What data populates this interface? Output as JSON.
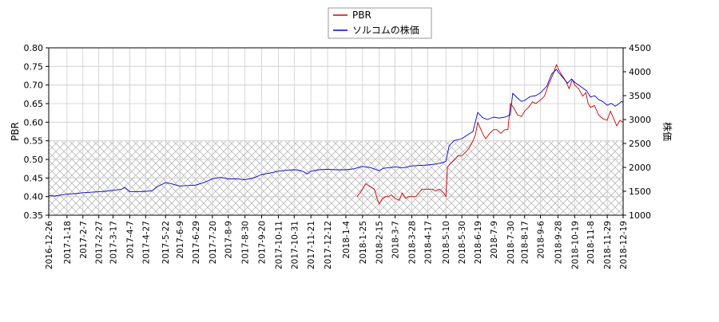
{
  "chart_data": {
    "type": "line",
    "title": "",
    "legend": {
      "placement": "top-center",
      "entries": [
        {
          "name": "PBR",
          "color": "#cc0000"
        },
        {
          "name": "ソルコムの株価",
          "color": "#0000cc"
        }
      ]
    },
    "x_axis": {
      "type": "date",
      "range": [
        "2016-12-26",
        "2018-12-19"
      ],
      "tick_labels": [
        "2016-12-26",
        "2017-1-18",
        "2017-2-7",
        "2017-2-27",
        "2017-3-17",
        "2017-4-7",
        "2017-4-27",
        "2017-5-22",
        "2017-6-9",
        "2017-6-29",
        "2017-7-20",
        "2017-8-9",
        "2017-8-30",
        "2017-9-20",
        "2017-10-11",
        "2017-10-31",
        "2017-11-21",
        "2017-12-12",
        "2018-1-4",
        "2018-1-25",
        "2018-2-15",
        "2018-3-7",
        "2018-3-28",
        "2018-4-17",
        "2018-5-10",
        "2018-5-30",
        "2018-6-19",
        "2018-7-9",
        "2018-7-30",
        "2018-8-17",
        "2018-9-6",
        "2018-9-28",
        "2018-10-19",
        "2018-11-8",
        "2018-11-29",
        "2018-12-19"
      ]
    },
    "y_left": {
      "label": "PBR",
      "range": [
        0.35,
        0.8
      ],
      "ticks": [
        "0.35",
        "0.40",
        "0.45",
        "0.50",
        "0.55",
        "0.60",
        "0.65",
        "0.70",
        "0.75",
        "0.80"
      ],
      "hatched_below": 0.55
    },
    "y_right": {
      "label": "株価",
      "range": [
        1000,
        4500
      ],
      "ticks": [
        "1000",
        "1500",
        "2000",
        "2500",
        "3000",
        "3500",
        "4000",
        "4500"
      ]
    },
    "grid": true,
    "series": [
      {
        "name": "PBR",
        "color": "#cc0000",
        "axis": "left",
        "points": [
          [
            "2018-1-18",
            0.4
          ],
          [
            "2018-1-22",
            0.41
          ],
          [
            "2018-1-25",
            0.42
          ],
          [
            "2018-1-29",
            0.435
          ],
          [
            "2018-2-1",
            0.43
          ],
          [
            "2018-2-5",
            0.425
          ],
          [
            "2018-2-9",
            0.42
          ],
          [
            "2018-2-13",
            0.39
          ],
          [
            "2018-2-15",
            0.38
          ],
          [
            "2018-2-19",
            0.395
          ],
          [
            "2018-2-23",
            0.4
          ],
          [
            "2018-2-27",
            0.4
          ],
          [
            "2018-3-2",
            0.405
          ],
          [
            "2018-3-7",
            0.395
          ],
          [
            "2018-3-12",
            0.39
          ],
          [
            "2018-3-16",
            0.41
          ],
          [
            "2018-3-20",
            0.395
          ],
          [
            "2018-3-24",
            0.4
          ],
          [
            "2018-3-28",
            0.4
          ],
          [
            "2018-4-2",
            0.4
          ],
          [
            "2018-4-6",
            0.41
          ],
          [
            "2018-4-10",
            0.42
          ],
          [
            "2018-4-17",
            0.42
          ],
          [
            "2018-4-23",
            0.42
          ],
          [
            "2018-4-27",
            0.415
          ],
          [
            "2018-5-2",
            0.42
          ],
          [
            "2018-5-7",
            0.41
          ],
          [
            "2018-5-10",
            0.4
          ],
          [
            "2018-5-12",
            0.48
          ],
          [
            "2018-5-16",
            0.49
          ],
          [
            "2018-5-21",
            0.5
          ],
          [
            "2018-5-25",
            0.51
          ],
          [
            "2018-5-30",
            0.51
          ],
          [
            "2018-6-4",
            0.52
          ],
          [
            "2018-6-8",
            0.53
          ],
          [
            "2018-6-13",
            0.55
          ],
          [
            "2018-6-16",
            0.565
          ],
          [
            "2018-6-19",
            0.6
          ],
          [
            "2018-6-25",
            0.57
          ],
          [
            "2018-6-29",
            0.555
          ],
          [
            "2018-7-4",
            0.57
          ],
          [
            "2018-7-9",
            0.58
          ],
          [
            "2018-7-13",
            0.58
          ],
          [
            "2018-7-18",
            0.57
          ],
          [
            "2018-7-23",
            0.58
          ],
          [
            "2018-7-27",
            0.58
          ],
          [
            "2018-7-30",
            0.65
          ],
          [
            "2018-8-3",
            0.64
          ],
          [
            "2018-8-8",
            0.62
          ],
          [
            "2018-8-13",
            0.615
          ],
          [
            "2018-8-17",
            0.63
          ],
          [
            "2018-8-22",
            0.64
          ],
          [
            "2018-8-27",
            0.655
          ],
          [
            "2018-8-31",
            0.65
          ],
          [
            "2018-9-6",
            0.66
          ],
          [
            "2018-9-11",
            0.67
          ],
          [
            "2018-9-16",
            0.7
          ],
          [
            "2018-9-22",
            0.73
          ],
          [
            "2018-9-26",
            0.755
          ],
          [
            "2018-9-28",
            0.745
          ],
          [
            "2018-10-2",
            0.73
          ],
          [
            "2018-10-8",
            0.71
          ],
          [
            "2018-10-12",
            0.69
          ],
          [
            "2018-10-16",
            0.715
          ],
          [
            "2018-10-19",
            0.7
          ],
          [
            "2018-10-24",
            0.69
          ],
          [
            "2018-10-29",
            0.67
          ],
          [
            "2018-11-2",
            0.68
          ],
          [
            "2018-11-5",
            0.65
          ],
          [
            "2018-11-8",
            0.64
          ],
          [
            "2018-11-13",
            0.645
          ],
          [
            "2018-11-18",
            0.62
          ],
          [
            "2018-11-23",
            0.61
          ],
          [
            "2018-11-29",
            0.605
          ],
          [
            "2018-12-3",
            0.63
          ],
          [
            "2018-12-7",
            0.61
          ],
          [
            "2018-12-11",
            0.59
          ],
          [
            "2018-12-15",
            0.605
          ],
          [
            "2018-12-19",
            0.6
          ]
        ]
      },
      {
        "name": "ソルコムの株価",
        "color": "#0000cc",
        "axis": "right",
        "points": [
          [
            "2016-12-26",
            1410
          ],
          [
            "2017-1-2",
            1400
          ],
          [
            "2017-1-10",
            1420
          ],
          [
            "2017-1-18",
            1440
          ],
          [
            "2017-1-28",
            1450
          ],
          [
            "2017-2-7",
            1470
          ],
          [
            "2017-2-17",
            1480
          ],
          [
            "2017-2-27",
            1490
          ],
          [
            "2017-3-7",
            1500
          ],
          [
            "2017-3-17",
            1520
          ],
          [
            "2017-3-27",
            1540
          ],
          [
            "2017-4-1",
            1580
          ],
          [
            "2017-4-7",
            1490
          ],
          [
            "2017-4-17",
            1490
          ],
          [
            "2017-4-27",
            1500
          ],
          [
            "2017-5-5",
            1510
          ],
          [
            "2017-5-12",
            1600
          ],
          [
            "2017-5-22",
            1680
          ],
          [
            "2017-5-29",
            1660
          ],
          [
            "2017-6-9",
            1610
          ],
          [
            "2017-6-19",
            1620
          ],
          [
            "2017-6-29",
            1630
          ],
          [
            "2017-7-9",
            1680
          ],
          [
            "2017-7-20",
            1760
          ],
          [
            "2017-7-30",
            1790
          ],
          [
            "2017-8-9",
            1760
          ],
          [
            "2017-8-19",
            1760
          ],
          [
            "2017-8-30",
            1740
          ],
          [
            "2017-9-10",
            1780
          ],
          [
            "2017-9-20",
            1850
          ],
          [
            "2017-9-30",
            1880
          ],
          [
            "2017-10-11",
            1920
          ],
          [
            "2017-10-21",
            1940
          ],
          [
            "2017-10-31",
            1950
          ],
          [
            "2017-11-6",
            1940
          ],
          [
            "2017-11-12",
            1910
          ],
          [
            "2017-11-16",
            1860
          ],
          [
            "2017-11-21",
            1920
          ],
          [
            "2017-12-1",
            1950
          ],
          [
            "2017-12-12",
            1960
          ],
          [
            "2017-12-22",
            1950
          ],
          [
            "2018-1-4",
            1950
          ],
          [
            "2018-1-14",
            1970
          ],
          [
            "2018-1-25",
            2020
          ],
          [
            "2018-2-5",
            1990
          ],
          [
            "2018-2-10",
            1960
          ],
          [
            "2018-2-15",
            1930
          ],
          [
            "2018-2-20",
            1980
          ],
          [
            "2018-3-7",
            2010
          ],
          [
            "2018-3-17",
            1990
          ],
          [
            "2018-3-28",
            2030
          ],
          [
            "2018-4-7",
            2040
          ],
          [
            "2018-4-17",
            2050
          ],
          [
            "2018-4-27",
            2070
          ],
          [
            "2018-5-6",
            2100
          ],
          [
            "2018-5-10",
            2130
          ],
          [
            "2018-5-14",
            2450
          ],
          [
            "2018-5-20",
            2560
          ],
          [
            "2018-5-30",
            2600
          ],
          [
            "2018-6-8",
            2700
          ],
          [
            "2018-6-13",
            2750
          ],
          [
            "2018-6-19",
            3150
          ],
          [
            "2018-6-25",
            3040
          ],
          [
            "2018-7-1",
            3000
          ],
          [
            "2018-7-9",
            3050
          ],
          [
            "2018-7-16",
            3030
          ],
          [
            "2018-7-23",
            3050
          ],
          [
            "2018-7-30",
            3100
          ],
          [
            "2018-8-2",
            3550
          ],
          [
            "2018-8-8",
            3450
          ],
          [
            "2018-8-13",
            3380
          ],
          [
            "2018-8-17",
            3400
          ],
          [
            "2018-8-24",
            3480
          ],
          [
            "2018-8-31",
            3500
          ],
          [
            "2018-9-6",
            3560
          ],
          [
            "2018-9-14",
            3700
          ],
          [
            "2018-9-20",
            3950
          ],
          [
            "2018-9-26",
            4050
          ],
          [
            "2018-9-28",
            4000
          ],
          [
            "2018-10-4",
            3880
          ],
          [
            "2018-10-10",
            3760
          ],
          [
            "2018-10-15",
            3850
          ],
          [
            "2018-10-19",
            3780
          ],
          [
            "2018-10-24",
            3720
          ],
          [
            "2018-10-30",
            3650
          ],
          [
            "2018-11-3",
            3600
          ],
          [
            "2018-11-8",
            3470
          ],
          [
            "2018-11-13",
            3500
          ],
          [
            "2018-11-18",
            3420
          ],
          [
            "2018-11-23",
            3380
          ],
          [
            "2018-11-29",
            3300
          ],
          [
            "2018-12-4",
            3340
          ],
          [
            "2018-12-9",
            3280
          ],
          [
            "2018-12-13",
            3320
          ],
          [
            "2018-12-17",
            3380
          ],
          [
            "2018-12-19",
            3360
          ]
        ]
      }
    ]
  }
}
